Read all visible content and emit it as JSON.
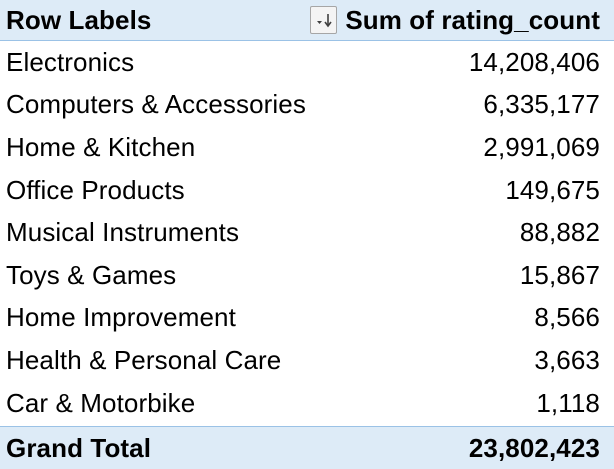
{
  "pivot": {
    "header": {
      "row_labels": "Row Labels",
      "value_header": "Sum of rating_count",
      "sort_filter_icon": "sort-descending-filter-icon"
    },
    "rows": [
      {
        "label": "Electronics",
        "value": "14,208,406"
      },
      {
        "label": "Computers & Accessories",
        "value": "6,335,177"
      },
      {
        "label": "Home & Kitchen",
        "value": "2,991,069"
      },
      {
        "label": "Office Products",
        "value": "149,675"
      },
      {
        "label": "Musical Instruments",
        "value": "88,882"
      },
      {
        "label": "Toys & Games",
        "value": "15,867"
      },
      {
        "label": "Home Improvement",
        "value": "8,566"
      },
      {
        "label": "Health & Personal Care",
        "value": "3,663"
      },
      {
        "label": "Car & Motorbike",
        "value": "1,118"
      }
    ],
    "total": {
      "label": "Grand Total",
      "value": "23,802,423"
    },
    "colors": {
      "header_fill": "#ddebf7",
      "border": "#9bc2e6"
    }
  }
}
